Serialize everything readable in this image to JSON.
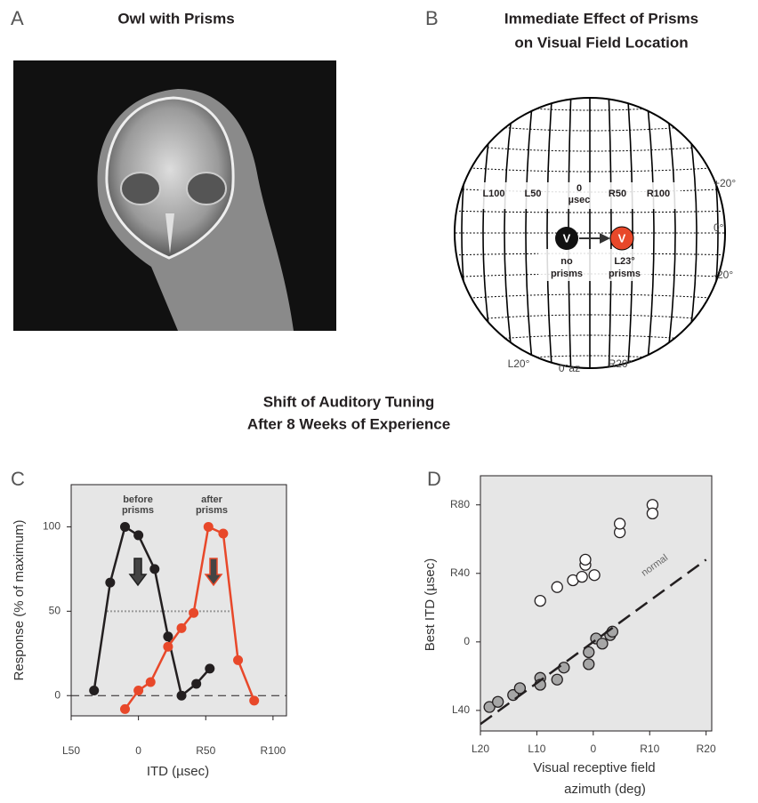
{
  "panel_a": {
    "letter": "A",
    "title": "Owl with Prisms"
  },
  "panel_b": {
    "letter": "B",
    "title": [
      "Immediate Effect of Prisms",
      "on Visual Field Location"
    ],
    "itd_labels": [
      "L100",
      "L50",
      "0",
      "µsec",
      "R50",
      "R100"
    ],
    "elevation_labels": [
      "+20°",
      "0°",
      "-20°"
    ],
    "azimuth_labels": [
      "L20°",
      "0°az",
      "R20°"
    ],
    "marker_symbol": "V",
    "no_prisms_label": [
      "no",
      "prisms"
    ],
    "prisms_label": [
      "L23°",
      "prisms"
    ]
  },
  "heading": [
    "Shift of Auditory Tuning",
    "After 8 Weeks of Experience"
  ],
  "chart_data": [
    {
      "letter": "C",
      "type": "line",
      "x_label": "ITD (µsec)",
      "y_label": "Response (% of maximum)",
      "xlim": [
        -50,
        110
      ],
      "ylim": [
        -12,
        125
      ],
      "xticks": [
        {
          "value": -50,
          "label": "L50"
        },
        0,
        {
          "value": 50,
          "label": "R50"
        },
        {
          "value": 100,
          "label": "R100"
        }
      ],
      "yticks": [
        0,
        50,
        100
      ],
      "series": [
        {
          "name": "before prisms",
          "color": "#231f20",
          "x": [
            -33,
            -21,
            -10,
            0,
            12,
            22,
            32,
            43,
            53
          ],
          "values": [
            3,
            67,
            100,
            95,
            75,
            35,
            0,
            7,
            16
          ]
        },
        {
          "name": "after prisms",
          "color": "#e8482a",
          "x": [
            -10,
            0,
            9,
            22,
            32,
            41,
            52,
            63,
            74,
            86
          ],
          "values": [
            -8,
            3,
            8,
            29,
            40,
            49,
            100,
            96,
            21,
            -3
          ]
        }
      ]
    },
    {
      "letter": "D",
      "type": "scatter",
      "x_label": [
        "Visual receptive field",
        "azimuth (deg)"
      ],
      "y_label": "Best ITD (µsec)",
      "xlim": [
        -20,
        21
      ],
      "ylim": [
        -52,
        97
      ],
      "xticks": [
        {
          "value": -20,
          "label": "L20"
        },
        {
          "value": -10,
          "label": "L10"
        },
        0,
        {
          "value": 10,
          "label": "R10"
        },
        {
          "value": 20,
          "label": "R20"
        }
      ],
      "yticks": [
        {
          "value": -40,
          "label": "L40"
        },
        0,
        {
          "value": 40,
          "label": "R40"
        },
        {
          "value": 80,
          "label": "R80"
        }
      ],
      "series": [
        {
          "color": "#ffffff",
          "x": [
            -9.4,
            -6.4,
            -3.6,
            -2,
            -1.4,
            -1.4,
            0.2,
            4.7,
            4.7,
            10.5,
            10.5
          ],
          "values": [
            24,
            32,
            36,
            38,
            45,
            48,
            39,
            64,
            69,
            80,
            75
          ]
        },
        {
          "color": "#a6a6a6",
          "x": [
            -18.4,
            -16.9,
            -14.2,
            -13,
            -9.4,
            -9.4,
            -6.4,
            -5.2,
            -0.8,
            -0.8,
            0.5,
            1.6,
            3,
            3.4
          ],
          "values": [
            -38,
            -35,
            -31,
            -27,
            -21,
            -25,
            -22,
            -15,
            -13,
            -6,
            2,
            -1,
            4,
            6
          ]
        },
        {
          "name": "normal",
          "style": "dashed",
          "color": "#231f20",
          "x": [
            -20,
            20
          ],
          "values": [
            -48,
            48
          ]
        }
      ]
    }
  ]
}
